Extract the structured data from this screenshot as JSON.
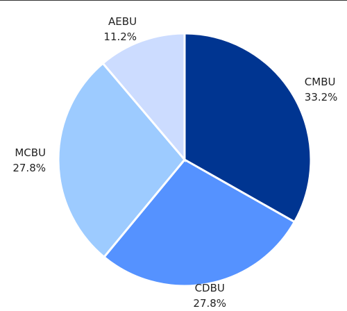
{
  "chart_data": {
    "type": "pie",
    "categories": [
      "CMBU",
      "CDBU",
      "MCBU",
      "AEBU"
    ],
    "values": [
      33.2,
      27.8,
      27.8,
      11.2
    ],
    "value_labels": [
      "33.2%",
      "27.8%",
      "27.8%",
      "11.2%"
    ],
    "colors": [
      "#003591",
      "#5592ff",
      "#9dcbff",
      "#ccdcff"
    ]
  }
}
